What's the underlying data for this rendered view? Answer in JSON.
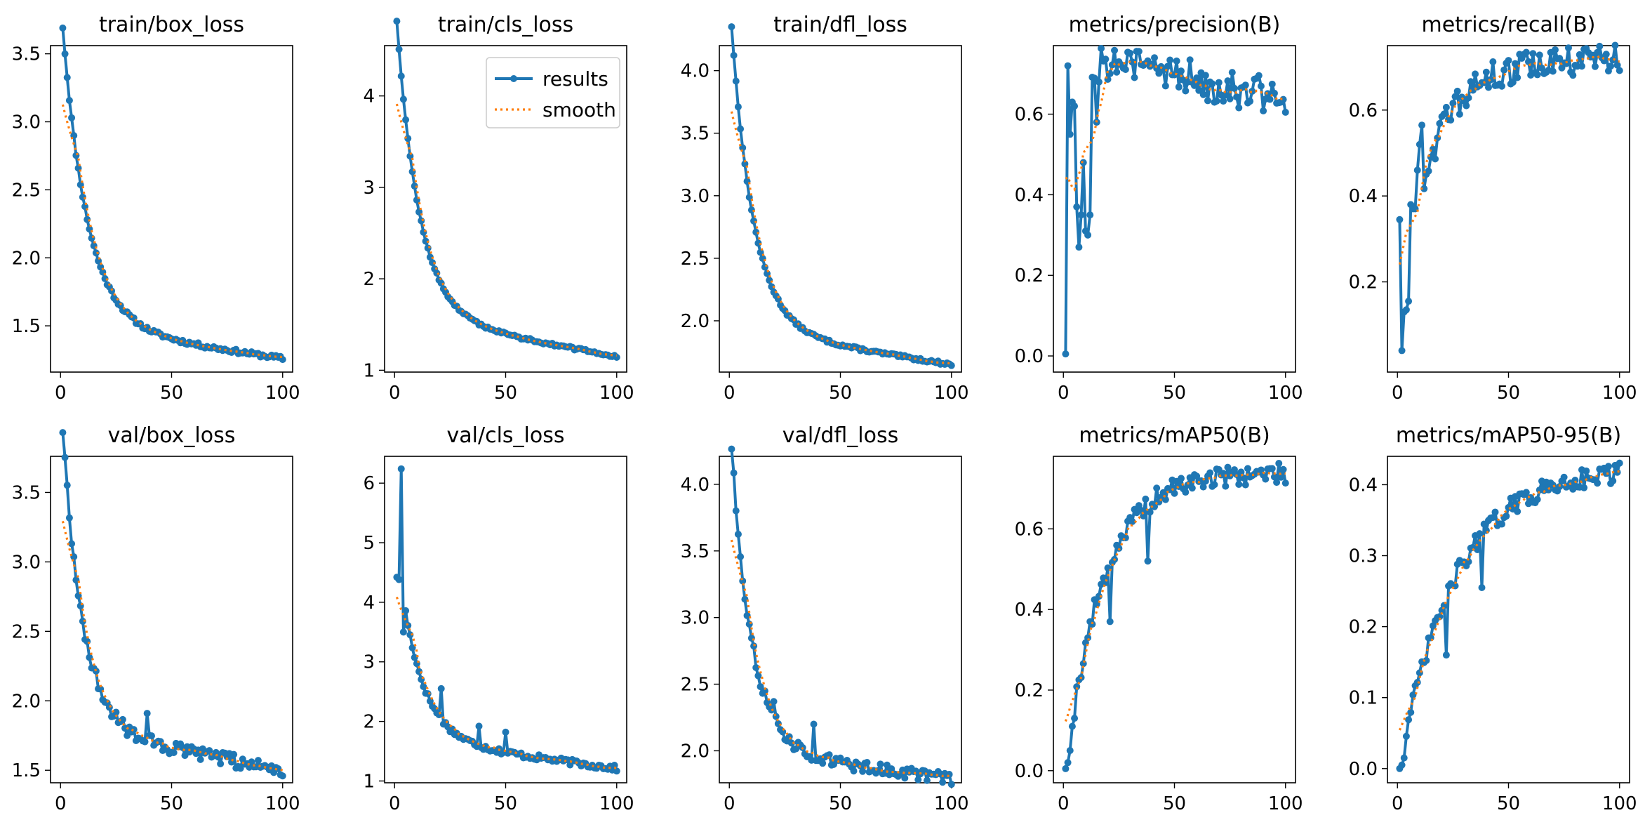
{
  "figure": {
    "colors": {
      "results": "#1f77b4",
      "smooth": "#ff7f0e",
      "axes": "#000000",
      "background": "#ffffff"
    },
    "legend": {
      "location": "top-right of train/cls_loss",
      "entries": [
        "results",
        "smooth"
      ]
    }
  },
  "chart_data": [
    {
      "type": "line",
      "title": "train/box_loss",
      "xlabel": "",
      "ylabel": "",
      "xlim": [
        -4.5,
        104.5
      ],
      "ylim": [
        1.16,
        3.56
      ],
      "xticks": [
        0,
        50,
        100
      ],
      "yticks": [
        1.5,
        2.0,
        2.5,
        3.0,
        3.5
      ],
      "start": 3.46,
      "end": 1.26,
      "decay": 0.09,
      "tail_slope": 0.24,
      "noise": 0.015,
      "seed": 11
    },
    {
      "type": "line",
      "title": "train/cls_loss",
      "xlabel": "",
      "ylabel": "",
      "xlim": [
        -4.5,
        104.5
      ],
      "ylim": [
        0.98,
        4.55
      ],
      "xticks": [
        0,
        50,
        100
      ],
      "yticks": [
        1,
        2,
        3,
        4
      ],
      "start": 4.38,
      "end": 1.15,
      "decay": 0.1,
      "tail_slope": 0.45,
      "noise": 0.015,
      "seed": 12,
      "legend": [
        "results",
        "smooth"
      ]
    },
    {
      "type": "line",
      "title": "train/dfl_loss",
      "xlabel": "",
      "ylabel": "",
      "xlim": [
        -4.5,
        104.5
      ],
      "ylim": [
        1.59,
        4.2
      ],
      "xticks": [
        0,
        50,
        100
      ],
      "yticks": [
        2.0,
        2.5,
        3.0,
        3.5,
        4.0
      ],
      "start": 4.08,
      "end": 1.65,
      "decay": 0.1,
      "tail_slope": 0.28,
      "noise": 0.012,
      "seed": 13
    },
    {
      "type": "line",
      "title": "metrics/precision(B)",
      "xlabel": "",
      "ylabel": "",
      "xlim": [
        -4.5,
        104.5
      ],
      "ylim": [
        -0.04,
        0.77
      ],
      "xticks": [
        0,
        50,
        100
      ],
      "yticks": [
        0.0,
        0.2,
        0.4,
        0.6
      ],
      "start": 0.0,
      "end": 0.64,
      "decay": 0.25,
      "tail_slope": 0.12,
      "noise": 0.05,
      "seed": 14,
      "fixed": [
        [
          1,
          0.005
        ],
        [
          2,
          0.72
        ],
        [
          3,
          0.55
        ],
        [
          4,
          0.63
        ],
        [
          5,
          0.62
        ],
        [
          6,
          0.37
        ],
        [
          7,
          0.27
        ],
        [
          8,
          0.35
        ],
        [
          9,
          0.48
        ],
        [
          10,
          0.31
        ],
        [
          11,
          0.3
        ],
        [
          12,
          0.35
        ],
        [
          15,
          0.58
        ],
        [
          25,
          0.73
        ],
        [
          41,
          0.74
        ]
      ]
    },
    {
      "type": "line",
      "title": "metrics/recall(B)",
      "xlabel": "",
      "ylabel": "",
      "xlim": [
        -4.5,
        104.5
      ],
      "ylim": [
        -0.01,
        0.75
      ],
      "xticks": [
        0,
        50,
        100
      ],
      "yticks": [
        0.2,
        0.4,
        0.6
      ],
      "start": 0.2,
      "end": 0.72,
      "decay": 0.06,
      "tail_slope": 0.0,
      "noise": 0.035,
      "seed": 15,
      "fixed": [
        [
          1,
          0.345
        ],
        [
          2,
          0.04
        ],
        [
          3,
          0.13
        ],
        [
          4,
          0.135
        ],
        [
          5,
          0.155
        ],
        [
          6,
          0.38
        ],
        [
          7,
          0.37
        ],
        [
          8,
          0.37
        ],
        [
          9,
          0.46
        ],
        [
          10,
          0.52
        ],
        [
          11,
          0.565
        ],
        [
          94,
          0.73
        ]
      ]
    },
    {
      "type": "line",
      "title": "val/box_loss",
      "xlabel": "",
      "ylabel": "",
      "xlim": [
        -4.5,
        104.5
      ],
      "ylim": [
        1.41,
        3.76
      ],
      "xticks": [
        0,
        50,
        100
      ],
      "yticks": [
        1.5,
        2.0,
        2.5,
        3.0,
        3.5
      ],
      "start": 3.66,
      "end": 1.5,
      "decay": 0.11,
      "tail_slope": 0.3,
      "noise": 0.05,
      "seed": 16,
      "fixed": [
        [
          20,
          1.99
        ],
        [
          39,
          1.91
        ]
      ]
    },
    {
      "type": "line",
      "title": "val/cls_loss",
      "xlabel": "",
      "ylabel": "",
      "xlim": [
        -4.5,
        104.5
      ],
      "ylim": [
        0.97,
        6.45
      ],
      "xticks": [
        0,
        50,
        100
      ],
      "yticks": [
        1,
        2,
        3,
        4,
        5,
        6
      ],
      "start": 4.42,
      "end": 1.21,
      "decay": 0.1,
      "tail_slope": 0.5,
      "noise": 0.05,
      "seed": 17,
      "fixed": [
        [
          1,
          4.42
        ],
        [
          2,
          4.38
        ],
        [
          3,
          6.24
        ],
        [
          4,
          3.5
        ],
        [
          21,
          2.55
        ],
        [
          38,
          1.92
        ],
        [
          50,
          1.82
        ]
      ]
    },
    {
      "type": "line",
      "title": "val/dfl_loss",
      "xlabel": "",
      "ylabel": "",
      "xlim": [
        -4.5,
        104.5
      ],
      "ylim": [
        1.76,
        4.21
      ],
      "xticks": [
        0,
        50,
        100
      ],
      "yticks": [
        2.0,
        2.5,
        3.0,
        3.5,
        4.0
      ],
      "start": 4.07,
      "end": 1.79,
      "decay": 0.11,
      "tail_slope": 0.22,
      "noise": 0.045,
      "seed": 18,
      "fixed": [
        [
          20,
          2.37
        ],
        [
          38,
          2.2
        ]
      ]
    },
    {
      "type": "line",
      "title": "metrics/mAP50(B)",
      "xlabel": "",
      "ylabel": "",
      "xlim": [
        -4.5,
        104.5
      ],
      "ylim": [
        -0.03,
        0.78
      ],
      "xticks": [
        0,
        50,
        100
      ],
      "yticks": [
        0.0,
        0.2,
        0.4,
        0.6
      ],
      "start": 0.0,
      "end": 0.74,
      "decay": 0.06,
      "tail_slope": 0.0,
      "noise": 0.025,
      "seed": 19,
      "fixed": [
        [
          1,
          0.005
        ],
        [
          2,
          0.02
        ],
        [
          3,
          0.05
        ],
        [
          4,
          0.11
        ],
        [
          5,
          0.13
        ],
        [
          21,
          0.37
        ],
        [
          38,
          0.52
        ]
      ]
    },
    {
      "type": "line",
      "title": "metrics/mAP50-95(B)",
      "xlabel": "",
      "ylabel": "",
      "xlim": [
        -4.5,
        104.5
      ],
      "ylim": [
        -0.02,
        0.44
      ],
      "xticks": [
        0,
        50,
        100
      ],
      "yticks": [
        0.0,
        0.1,
        0.2,
        0.3,
        0.4
      ],
      "start": 0.0,
      "end": 0.425,
      "decay": 0.04,
      "tail_slope": 0.0,
      "noise": 0.014,
      "seed": 20,
      "fixed": [
        [
          1,
          0.0
        ],
        [
          2,
          0.005
        ],
        [
          3,
          0.015
        ],
        [
          22,
          0.16
        ],
        [
          38,
          0.255
        ]
      ]
    }
  ]
}
